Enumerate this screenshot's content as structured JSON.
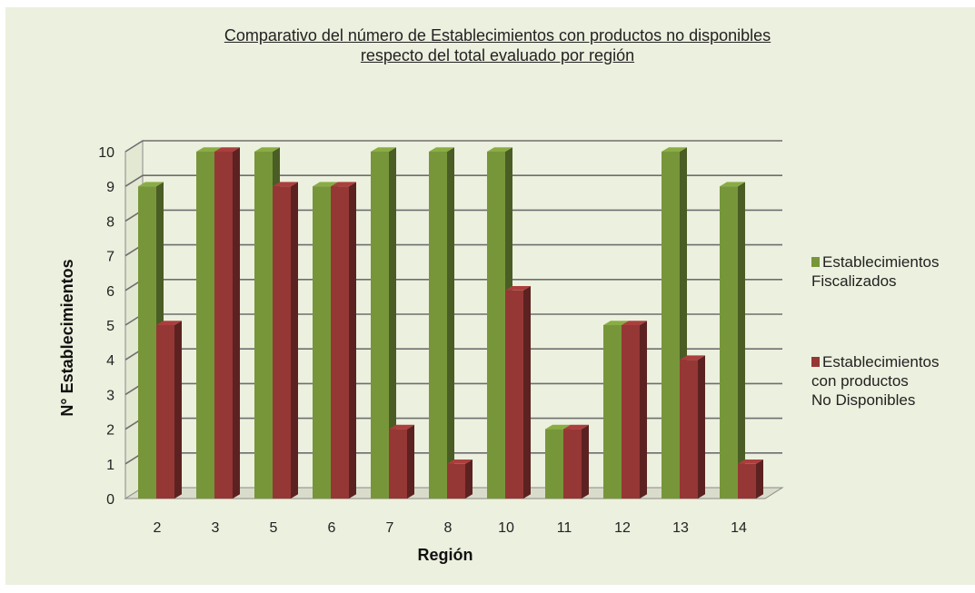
{
  "chart_data": {
    "type": "bar",
    "title_lines": [
      "Comparativo del número de Establecimientos con productos no disponibles",
      "respecto del total evaluado por región"
    ],
    "xlabel": "Región",
    "ylabel": "N° Establecimientos",
    "ylim": [
      0,
      10
    ],
    "yticks": [
      "0",
      "1",
      "2",
      "3",
      "4",
      "5",
      "6",
      "7",
      "8",
      "9",
      "10"
    ],
    "categories": [
      "2",
      "3",
      "5",
      "6",
      "7",
      "8",
      "10",
      "11",
      "12",
      "13",
      "14"
    ],
    "series": [
      {
        "legend_lines": [
          "Establecimientos",
          "Fiscalizados"
        ],
        "color": "#77963a",
        "values": [
          9,
          10,
          10,
          9,
          10,
          10,
          10,
          2,
          5,
          10,
          9
        ]
      },
      {
        "legend_lines": [
          "Establecimientos",
          "con productos",
          "No Disponibles"
        ],
        "color": "#953735",
        "values": [
          5,
          10,
          9,
          9,
          2,
          1,
          6,
          2,
          5,
          4,
          1
        ]
      }
    ],
    "grid": true,
    "legend_position": "right"
  }
}
